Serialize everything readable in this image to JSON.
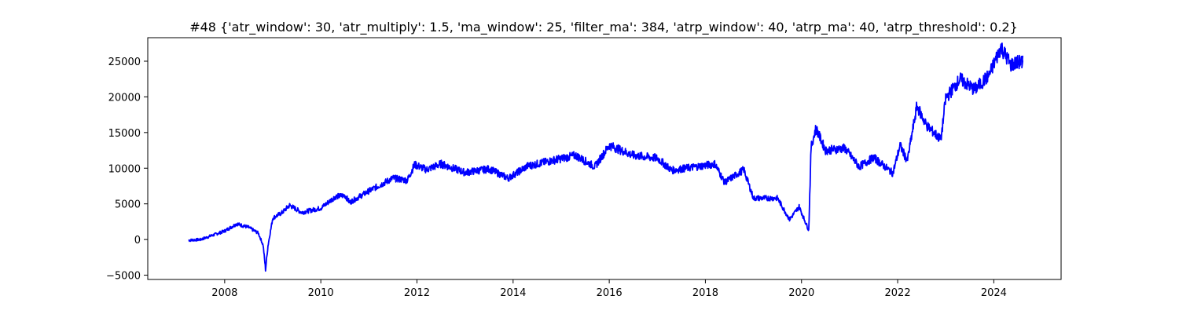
{
  "chart_data": {
    "type": "line",
    "title": "#48 {'atr_window': 30, 'atr_multiply': 1.5, 'ma_window': 25, 'filter_ma': 384, 'atrp_window': 40, 'atrp_ma': 40, 'atrp_threshold': 0.2}",
    "xlabel": "",
    "ylabel": "",
    "xlim": [
      2006.4,
      2025.4
    ],
    "ylim": [
      -5600,
      28300
    ],
    "x_ticks": [
      2008,
      2010,
      2012,
      2014,
      2016,
      2018,
      2020,
      2022,
      2024
    ],
    "y_ticks": [
      -5000,
      0,
      5000,
      10000,
      15000,
      20000,
      25000
    ],
    "grid": false,
    "legend": "none",
    "series": [
      {
        "color": "#0000ff",
        "points": [
          [
            2007.25,
            -100
          ],
          [
            2007.5,
            0
          ],
          [
            2007.75,
            600
          ],
          [
            2008.0,
            1200
          ],
          [
            2008.25,
            2200
          ],
          [
            2008.5,
            1700
          ],
          [
            2008.7,
            900
          ],
          [
            2008.8,
            -800
          ],
          [
            2008.85,
            -4200
          ],
          [
            2008.9,
            -900
          ],
          [
            2009.0,
            3000
          ],
          [
            2009.2,
            3800
          ],
          [
            2009.35,
            4800
          ],
          [
            2009.6,
            3800
          ],
          [
            2010.0,
            4400
          ],
          [
            2010.3,
            6000
          ],
          [
            2010.5,
            6200
          ],
          [
            2010.6,
            5200
          ],
          [
            2011.0,
            6800
          ],
          [
            2011.5,
            8600
          ],
          [
            2011.8,
            8300
          ],
          [
            2011.95,
            10500
          ],
          [
            2012.2,
            9800
          ],
          [
            2012.5,
            10600
          ],
          [
            2013.0,
            9400
          ],
          [
            2013.5,
            9900
          ],
          [
            2013.9,
            8600
          ],
          [
            2014.3,
            10300
          ],
          [
            2014.7,
            10900
          ],
          [
            2015.3,
            11800
          ],
          [
            2015.7,
            10200
          ],
          [
            2016.0,
            13200
          ],
          [
            2016.5,
            11800
          ],
          [
            2017.0,
            11400
          ],
          [
            2017.3,
            9700
          ],
          [
            2017.8,
            10200
          ],
          [
            2018.2,
            10600
          ],
          [
            2018.4,
            8000
          ],
          [
            2018.8,
            9800
          ],
          [
            2019.0,
            5800
          ],
          [
            2019.5,
            5800
          ],
          [
            2019.75,
            2800
          ],
          [
            2019.95,
            4600
          ],
          [
            2020.15,
            1300
          ],
          [
            2020.2,
            13000
          ],
          [
            2020.3,
            15600
          ],
          [
            2020.5,
            12500
          ],
          [
            2020.9,
            12800
          ],
          [
            2021.2,
            10200
          ],
          [
            2021.5,
            11500
          ],
          [
            2021.9,
            9300
          ],
          [
            2022.05,
            13200
          ],
          [
            2022.2,
            11000
          ],
          [
            2022.4,
            18700
          ],
          [
            2022.6,
            16000
          ],
          [
            2022.9,
            14000
          ],
          [
            2023.0,
            19800
          ],
          [
            2023.3,
            22500
          ],
          [
            2023.6,
            21000
          ],
          [
            2023.9,
            23000
          ],
          [
            2024.15,
            27000
          ],
          [
            2024.35,
            24500
          ],
          [
            2024.6,
            25000
          ]
        ]
      }
    ]
  }
}
